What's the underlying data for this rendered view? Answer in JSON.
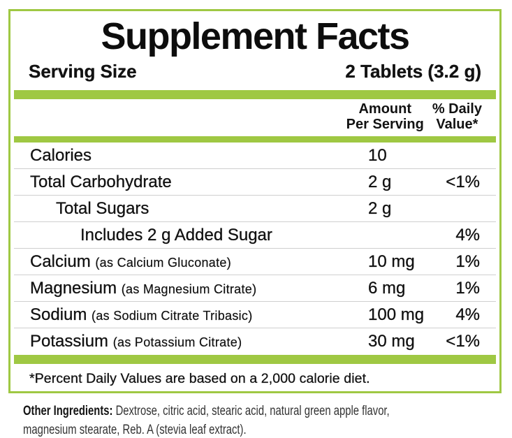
{
  "panel": {
    "title": "Supplement Facts",
    "serving_size_label": "Serving Size",
    "serving_size_value": "2 Tablets (3.2 g)",
    "columns": {
      "amount_line1": "Amount",
      "amount_line2": "Per Serving",
      "daily_line1": "% Daily",
      "daily_line2": "Value*"
    },
    "rows": [
      {
        "name": "Calories",
        "detail": "",
        "amount": "10",
        "daily_value": ""
      },
      {
        "name": "Total Carbohydrate",
        "detail": "",
        "amount": "2 g",
        "daily_value": "<1%"
      },
      {
        "name": "Total Sugars",
        "detail": "",
        "amount": "2 g",
        "daily_value": ""
      },
      {
        "name": "Includes 2 g Added Sugar",
        "detail": "",
        "amount": "",
        "daily_value": "4%"
      },
      {
        "name": "Calcium",
        "detail": "(as Calcium Gluconate)",
        "amount": "10 mg",
        "daily_value": "1%"
      },
      {
        "name": "Magnesium",
        "detail": "(as Magnesium Citrate)",
        "amount": "6 mg",
        "daily_value": "1%"
      },
      {
        "name": "Sodium",
        "detail": "(as Sodium Citrate Tribasic)",
        "amount": "100 mg",
        "daily_value": "4%"
      },
      {
        "name": "Potassium",
        "detail": "(as Potassium Citrate)",
        "amount": "30 mg",
        "daily_value": "<1%"
      }
    ],
    "footnote": "*Percent Daily Values are based on a 2,000 calorie diet."
  },
  "other_ingredients": {
    "label": "Other Ingredients:",
    "line1": "Dextrose, citric acid, stearic acid, natural green apple flavor,",
    "line2": "magnesium stearate, Reb. A (stevia leaf extract)."
  },
  "colors": {
    "accent_green": "#9fc843",
    "separator_gray": "#cfcfcf",
    "text_black": "#121212"
  }
}
